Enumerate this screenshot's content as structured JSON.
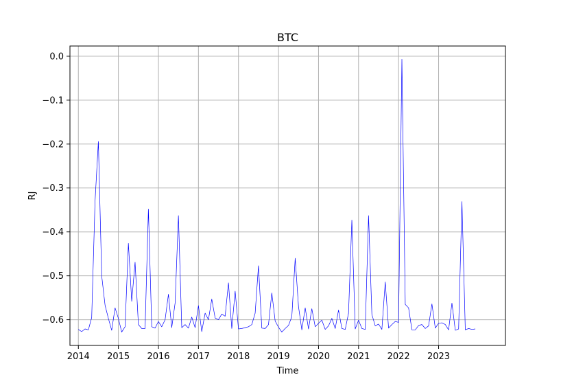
{
  "chart_data": {
    "type": "line",
    "title": "BTC",
    "xlabel": "Time",
    "ylabel": "RJ",
    "xlim": [
      2013.79,
      2024.67
    ],
    "ylim": [
      -0.6585,
      0.0233
    ],
    "grid": true,
    "x_ticks": [
      2014,
      2015,
      2016,
      2017,
      2018,
      2019,
      2020,
      2021,
      2022,
      2023
    ],
    "x_tick_labels": [
      "2014",
      "2015",
      "2016",
      "2017",
      "2018",
      "2019",
      "2020",
      "2021",
      "2022",
      "2023"
    ],
    "y_ticks": [
      0.0,
      -0.1,
      -0.2,
      -0.3,
      -0.4,
      -0.5,
      -0.6
    ],
    "y_tick_labels": [
      "0.0",
      "−0.1",
      "−0.2",
      "−0.3",
      "−0.4",
      "−0.5",
      "−0.6"
    ],
    "series": [
      {
        "color": "#0000ff",
        "x": [
          2014.0,
          2014.083,
          2014.167,
          2014.25,
          2014.333,
          2014.417,
          2014.5,
          2014.583,
          2014.667,
          2014.75,
          2014.833,
          2014.917,
          2015.0,
          2015.083,
          2015.167,
          2015.25,
          2015.333,
          2015.417,
          2015.5,
          2015.583,
          2015.667,
          2015.75,
          2015.833,
          2015.917,
          2016.0,
          2016.083,
          2016.167,
          2016.25,
          2016.333,
          2016.417,
          2016.5,
          2016.583,
          2016.667,
          2016.75,
          2016.833,
          2016.917,
          2017.0,
          2017.083,
          2017.167,
          2017.25,
          2017.333,
          2017.417,
          2017.5,
          2017.583,
          2017.667,
          2017.75,
          2017.833,
          2017.917,
          2018.0,
          2018.083,
          2018.167,
          2018.25,
          2018.333,
          2018.417,
          2018.5,
          2018.583,
          2018.667,
          2018.75,
          2018.833,
          2018.917,
          2019.0,
          2019.083,
          2019.167,
          2019.25,
          2019.333,
          2019.417,
          2019.5,
          2019.583,
          2019.667,
          2019.75,
          2019.833,
          2019.917,
          2020.0,
          2020.083,
          2020.167,
          2020.25,
          2020.333,
          2020.417,
          2020.5,
          2020.583,
          2020.667,
          2020.75,
          2020.833,
          2020.917,
          2021.0,
          2021.083,
          2021.167,
          2021.25,
          2021.333,
          2021.417,
          2021.5,
          2021.583,
          2021.667,
          2021.75,
          2021.833,
          2021.917,
          2022.0,
          2022.083,
          2022.167,
          2022.25,
          2022.333,
          2022.417,
          2022.5,
          2022.583,
          2022.667,
          2022.75,
          2022.833,
          2022.917,
          2023.0,
          2023.083,
          2023.167,
          2023.25,
          2023.333,
          2023.417,
          2023.5,
          2023.583,
          2023.667,
          2023.75,
          2023.833,
          2023.917
        ],
        "values": [
          -0.622,
          -0.627,
          -0.621,
          -0.623,
          -0.595,
          -0.33,
          -0.194,
          -0.5,
          -0.567,
          -0.597,
          -0.624,
          -0.573,
          -0.597,
          -0.628,
          -0.616,
          -0.426,
          -0.558,
          -0.469,
          -0.611,
          -0.62,
          -0.62,
          -0.348,
          -0.616,
          -0.619,
          -0.604,
          -0.616,
          -0.6,
          -0.542,
          -0.618,
          -0.562,
          -0.363,
          -0.618,
          -0.611,
          -0.619,
          -0.594,
          -0.618,
          -0.568,
          -0.627,
          -0.585,
          -0.6,
          -0.553,
          -0.596,
          -0.6,
          -0.587,
          -0.592,
          -0.516,
          -0.62,
          -0.535,
          -0.621,
          -0.62,
          -0.618,
          -0.616,
          -0.611,
          -0.585,
          -0.477,
          -0.619,
          -0.62,
          -0.611,
          -0.539,
          -0.603,
          -0.617,
          -0.628,
          -0.62,
          -0.613,
          -0.593,
          -0.46,
          -0.57,
          -0.623,
          -0.573,
          -0.621,
          -0.575,
          -0.616,
          -0.608,
          -0.601,
          -0.622,
          -0.614,
          -0.597,
          -0.62,
          -0.578,
          -0.62,
          -0.622,
          -0.585,
          -0.373,
          -0.621,
          -0.601,
          -0.62,
          -0.622,
          -0.363,
          -0.588,
          -0.614,
          -0.61,
          -0.622,
          -0.514,
          -0.619,
          -0.611,
          -0.604,
          -0.606,
          -0.007,
          -0.565,
          -0.573,
          -0.623,
          -0.623,
          -0.613,
          -0.611,
          -0.62,
          -0.614,
          -0.564,
          -0.619,
          -0.608,
          -0.607,
          -0.611,
          -0.623,
          -0.562,
          -0.624,
          -0.621,
          -0.331,
          -0.623,
          -0.62,
          -0.622,
          -0.621
        ]
      }
    ]
  }
}
